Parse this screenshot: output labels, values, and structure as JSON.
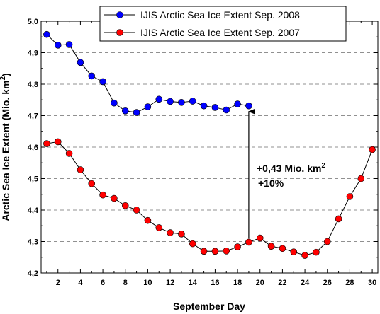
{
  "chart_data": {
    "type": "line",
    "xlabel": "September Day",
    "ylabel_main": "Arctic Sea Ice Extent (Mio. km",
    "ylabel_sup": "2",
    "ylabel_end": ")",
    "xlim": [
      0.5,
      30.5
    ],
    "ylim": [
      4.2,
      5.0
    ],
    "xticks": [
      2,
      4,
      6,
      8,
      10,
      12,
      14,
      16,
      18,
      20,
      22,
      24,
      26,
      28,
      30
    ],
    "yticks": [
      4.2,
      4.3,
      4.4,
      4.5,
      4.6,
      4.7,
      4.8,
      4.9,
      5.0
    ],
    "ytick_labels": [
      "4,2",
      "4,3",
      "4,4",
      "4,5",
      "4,6",
      "4,7",
      "4,8",
      "4,9",
      "5,0"
    ],
    "grid": "horizontal-dashed",
    "legend_position": "top-right",
    "series": [
      {
        "name": "IJIS Arctic Sea Ice Extent Sep. 2008",
        "color": "#0000ff",
        "x": [
          1,
          2,
          3,
          4,
          5,
          6,
          7,
          8,
          9,
          10,
          11,
          12,
          13,
          14,
          15,
          16,
          17,
          18,
          19
        ],
        "values": [
          4.958,
          4.924,
          4.926,
          4.869,
          4.826,
          4.808,
          4.74,
          4.715,
          4.71,
          4.728,
          4.752,
          4.745,
          4.742,
          4.746,
          4.731,
          4.726,
          4.718,
          4.737,
          4.731
        ]
      },
      {
        "name": "IJIS Arctic Sea Ice Extent Sep. 2007",
        "color": "#ff0000",
        "x": [
          1,
          2,
          3,
          4,
          5,
          6,
          7,
          8,
          9,
          10,
          11,
          12,
          13,
          14,
          15,
          16,
          17,
          18,
          19,
          20,
          21,
          22,
          23,
          24,
          25,
          26,
          27,
          28,
          29,
          30
        ],
        "values": [
          4.611,
          4.617,
          4.58,
          4.528,
          4.484,
          4.448,
          4.437,
          4.414,
          4.4,
          4.367,
          4.344,
          4.328,
          4.324,
          4.293,
          4.269,
          4.269,
          4.27,
          4.283,
          4.298,
          4.311,
          4.285,
          4.278,
          4.267,
          4.256,
          4.266,
          4.3,
          4.372,
          4.443,
          4.5,
          4.592
        ]
      }
    ],
    "annotation": {
      "arrow_x": 19,
      "arrow_from": 4.298,
      "arrow_to": 4.731,
      "line1_main": "+0,43 Mio. km",
      "line1_sup": "2",
      "line2": "+10%"
    }
  }
}
